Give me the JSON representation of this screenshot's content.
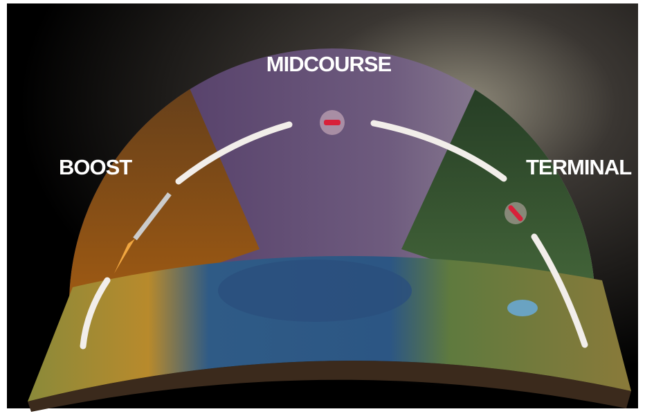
{
  "labels": {
    "boost": "BOOST",
    "midcourse": "MIDCOURSE",
    "terminal": "TERMINAL"
  }
}
